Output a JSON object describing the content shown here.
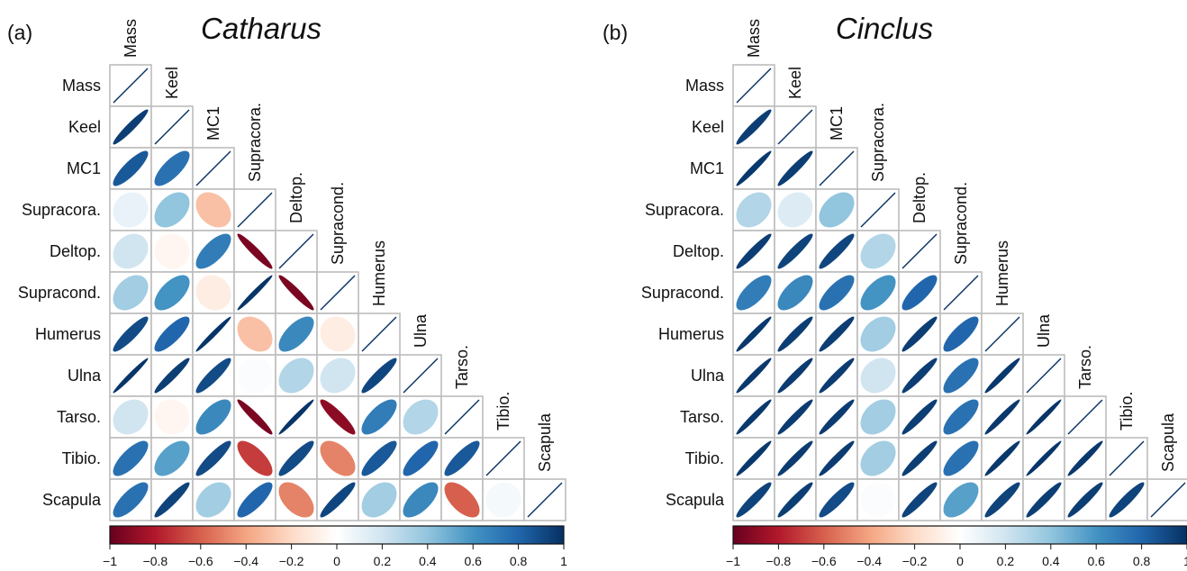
{
  "colorbar": {
    "min": -1,
    "max": 1,
    "ticks": [
      "−1",
      "−0.8",
      "−0.6",
      "−0.4",
      "−0.2",
      "0",
      "0.2",
      "0.4",
      "0.6",
      "0.8",
      "1"
    ],
    "colors": [
      "#67001f",
      "#b2182b",
      "#d6604d",
      "#f4a582",
      "#fddbc7",
      "#ffffff",
      "#d1e5f0",
      "#92c5de",
      "#4393c3",
      "#2166ac",
      "#053061"
    ]
  },
  "chart_data": [
    {
      "type": "heatmap",
      "panel_label": "(a)",
      "title": "Catharus",
      "variables": [
        "Mass",
        "Keel",
        "MC1",
        "Supracora.",
        "Deltop.",
        "Supracond.",
        "Humerus",
        "Ulna",
        "Tarso.",
        "Tibio.",
        "Scapula"
      ],
      "matrix_lower_triangle": [
        [
          1
        ],
        [
          0.95,
          1
        ],
        [
          0.85,
          0.75,
          1
        ],
        [
          0.1,
          0.4,
          -0.3,
          1
        ],
        [
          0.2,
          -0.05,
          0.7,
          -0.95,
          1
        ],
        [
          0.35,
          0.6,
          -0.1,
          0.98,
          -0.95,
          1
        ],
        [
          0.9,
          0.8,
          0.98,
          -0.3,
          0.65,
          -0.1,
          1
        ],
        [
          0.98,
          0.95,
          0.9,
          0.02,
          0.3,
          0.2,
          0.92,
          1
        ],
        [
          0.2,
          -0.05,
          0.65,
          -0.95,
          0.98,
          -0.9,
          0.7,
          0.3,
          1
        ],
        [
          0.75,
          0.55,
          0.9,
          -0.7,
          0.9,
          -0.5,
          0.85,
          0.8,
          0.85,
          1
        ],
        [
          0.75,
          0.93,
          0.35,
          0.8,
          -0.5,
          0.92,
          0.35,
          0.65,
          -0.6,
          0.05,
          1
        ]
      ],
      "color_scale": [
        -1,
        1
      ]
    },
    {
      "type": "heatmap",
      "panel_label": "(b)",
      "title": "Cinclus",
      "variables": [
        "Mass",
        "Keel",
        "MC1",
        "Supracora.",
        "Deltop.",
        "Supracond.",
        "Humerus",
        "Ulna",
        "Tarso.",
        "Tibio.",
        "Scapula"
      ],
      "matrix_lower_triangle": [
        [
          1
        ],
        [
          0.95,
          1
        ],
        [
          0.97,
          0.95,
          1
        ],
        [
          0.3,
          0.15,
          0.4,
          1
        ],
        [
          0.95,
          0.93,
          0.92,
          0.3,
          1
        ],
        [
          0.7,
          0.65,
          0.75,
          0.6,
          0.8,
          1
        ],
        [
          0.97,
          0.95,
          0.95,
          0.35,
          0.95,
          0.8,
          1
        ],
        [
          0.97,
          0.96,
          0.96,
          0.2,
          0.95,
          0.75,
          0.97,
          1
        ],
        [
          0.97,
          0.96,
          0.96,
          0.35,
          0.95,
          0.75,
          0.97,
          0.98,
          1
        ],
        [
          0.97,
          0.96,
          0.96,
          0.35,
          0.95,
          0.75,
          0.97,
          0.98,
          0.97,
          1
        ],
        [
          0.93,
          0.95,
          0.9,
          0.02,
          0.93,
          0.55,
          0.93,
          0.95,
          0.95,
          0.93,
          1
        ]
      ],
      "color_scale": [
        -1,
        1
      ]
    }
  ]
}
